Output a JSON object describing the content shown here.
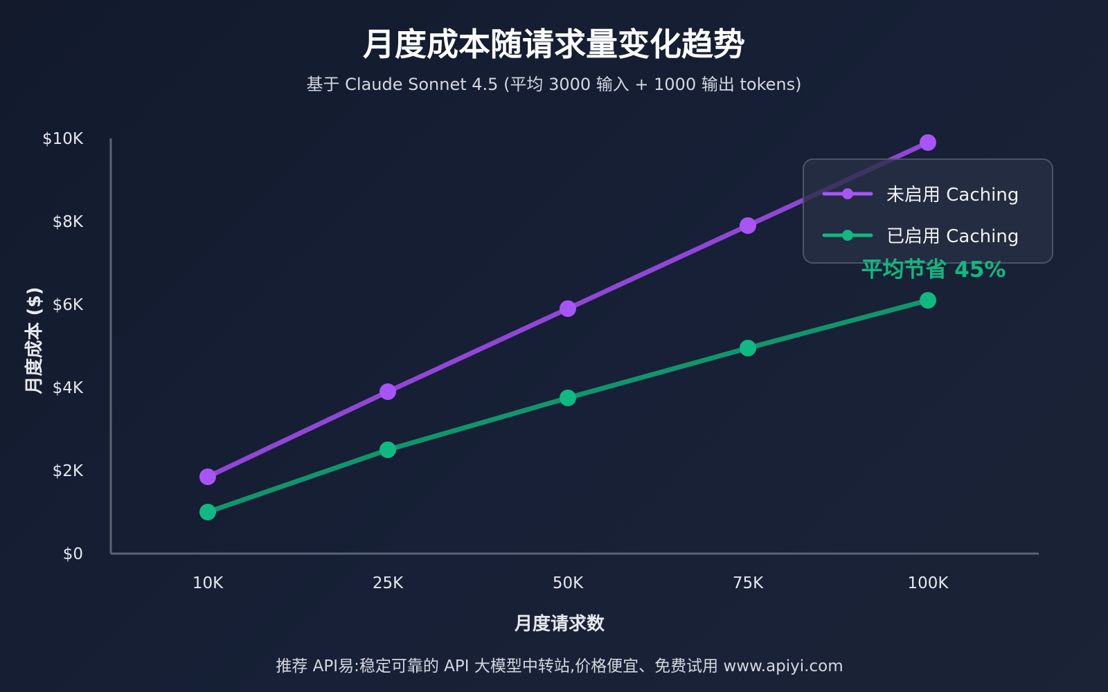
{
  "title": "月度成本随请求量变化趋势",
  "subtitle": "基于 Claude Sonnet 4.5 (平均 3000 输入 + 1000 输出 tokens)",
  "footer": "推荐 API易:稳定可靠的 API 大模型中转站,价格便宜、免费试用 www.apiyi.com",
  "annotation": "平均节省 45%",
  "colors": {
    "background": "#141c2f",
    "without_caching": "#a855f7",
    "without_caching_line": "#9046d6",
    "with_caching": "#10b981",
    "with_caching_line": "#11956c",
    "axis": "#5b6474",
    "text_primary": "#ffffff",
    "text_secondary": "#d4d8e0",
    "annotation": "#10b981"
  },
  "chart_data": {
    "type": "line",
    "xlabel": "月度请求数",
    "ylabel": "月度成本 ($)",
    "categories": [
      "10K",
      "25K",
      "50K",
      "75K",
      "100K"
    ],
    "y_ticks": [
      {
        "value": 0,
        "label": "$0"
      },
      {
        "value": 2000,
        "label": "$2K"
      },
      {
        "value": 4000,
        "label": "$4K"
      },
      {
        "value": 6000,
        "label": "$6K"
      },
      {
        "value": 8000,
        "label": "$8K"
      },
      {
        "value": 10000,
        "label": "$10K"
      }
    ],
    "ylim": [
      0,
      10000
    ],
    "grid": false,
    "legend_position": "top-right",
    "series": [
      {
        "name": "未启用 Caching",
        "color_key": "without_caching",
        "values": [
          1850,
          3900,
          5900,
          7900,
          9900
        ]
      },
      {
        "name": "已启用 Caching",
        "color_key": "with_caching",
        "values": [
          1000,
          2500,
          3750,
          4950,
          6100
        ]
      }
    ]
  }
}
